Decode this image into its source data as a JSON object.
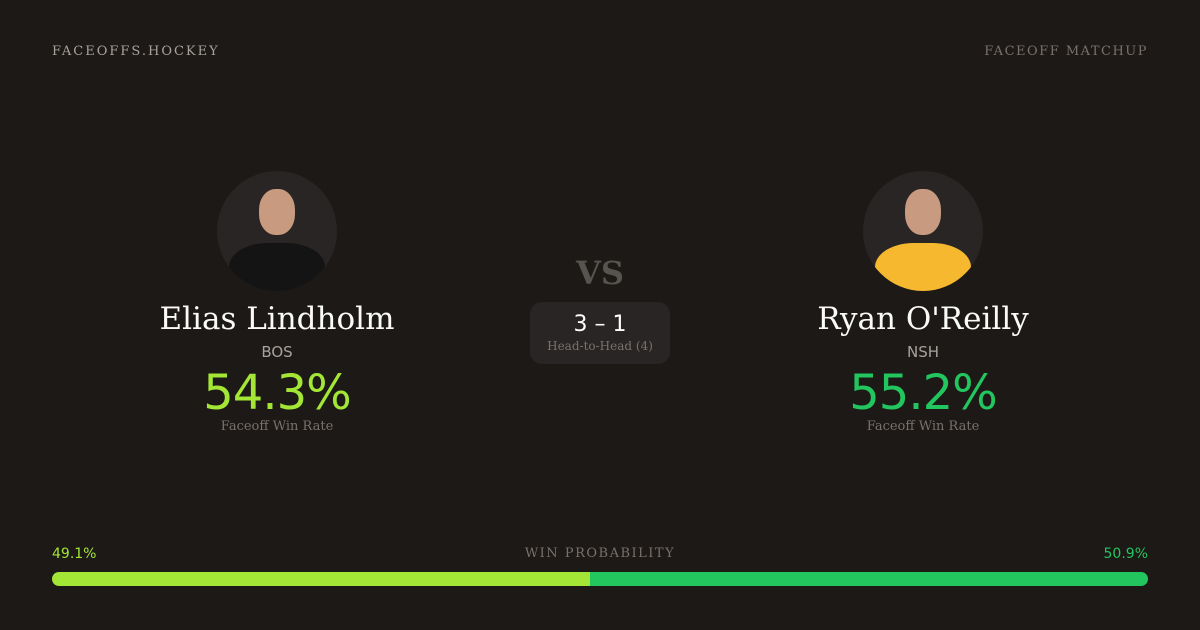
{
  "brand": "FACEOFFS.HOCKEY",
  "tag": "FACEOFF MATCHUP",
  "vs": "VS",
  "colors": {
    "left": "#a3e635",
    "right": "#22c55e"
  },
  "left": {
    "name": "Elias Lindholm",
    "team": "BOS",
    "pct": "54.3%",
    "label": "Faceoff Win Rate"
  },
  "right": {
    "name": "Ryan O'Reilly",
    "team": "NSH",
    "pct": "55.2%",
    "label": "Faceoff Win Rate"
  },
  "h2h": {
    "score": "3 – 1",
    "label": "Head-to-Head (4)"
  },
  "win": {
    "title": "WIN PROBABILITY",
    "left": "49.1%",
    "right": "50.9%",
    "left_value": 49.1,
    "right_value": 50.9
  }
}
